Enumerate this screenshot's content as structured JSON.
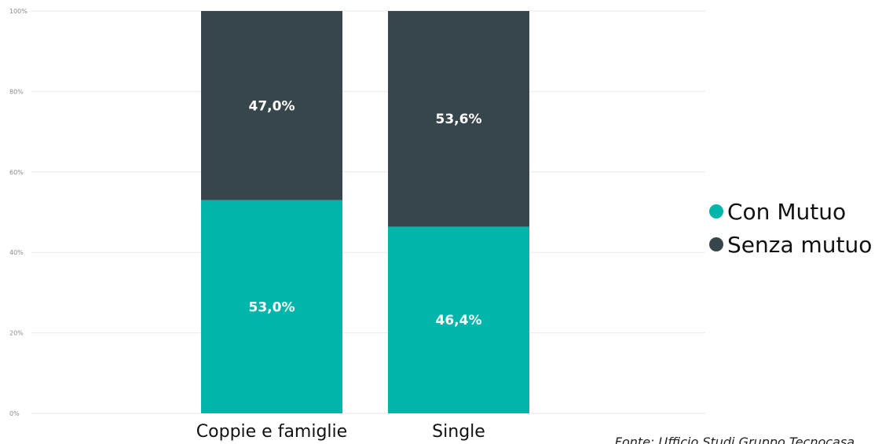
{
  "chart_data": {
    "type": "bar",
    "stacked": true,
    "categories": [
      "Coppie e famiglie",
      "Single"
    ],
    "series": [
      {
        "name": "Con Mutuo",
        "values": [
          53.0,
          46.4
        ],
        "labels": [
          "53,0%",
          "46,4%"
        ],
        "color": "#00b6ab"
      },
      {
        "name": "Senza mutuo",
        "values": [
          47.0,
          53.6
        ],
        "labels": [
          "47,0%",
          "53,6%"
        ],
        "color": "#37464b"
      }
    ],
    "ylim": [
      0,
      100
    ],
    "yticks": [
      0,
      20,
      40,
      60,
      80,
      100
    ],
    "ytick_labels": [
      "0%",
      "20%",
      "40%",
      "60%",
      "80%",
      "100%"
    ],
    "grid": true,
    "legend_position": "right"
  },
  "source_note": "Fonte: Ufficio Studi Gruppo Tecnocasa"
}
